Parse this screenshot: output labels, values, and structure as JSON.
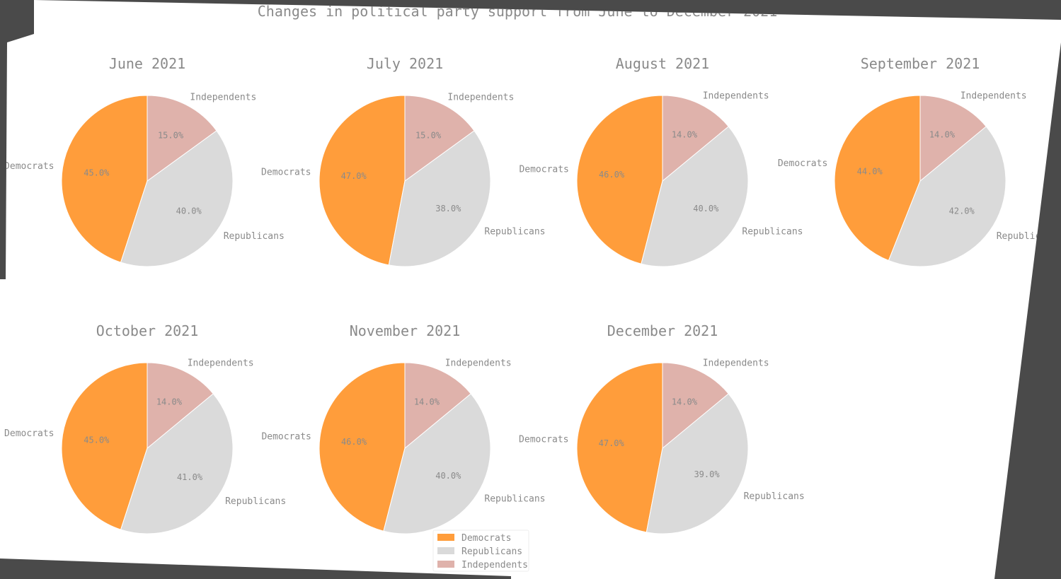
{
  "chart_data": {
    "type": "pie",
    "title": "Changes in political party support from June to December 2021",
    "legend": {
      "placement": "bottom-center",
      "entries": [
        "Democrats",
        "Republicans",
        "Independents"
      ]
    },
    "colors": {
      "Democrats": "#ff8c19",
      "Republicans": "#d3d3d3",
      "Independents": "#d9a59c"
    },
    "charts": [
      {
        "title": "June 2021",
        "categories": [
          "Democrats",
          "Republicans",
          "Independents"
        ],
        "values": [
          45.0,
          40.0,
          15.0
        ],
        "value_labels": [
          "45.0%",
          "40.0%",
          "15.0%"
        ]
      },
      {
        "title": "July 2021",
        "categories": [
          "Democrats",
          "Republicans",
          "Independents"
        ],
        "values": [
          47.0,
          38.0,
          15.0
        ],
        "value_labels": [
          "47.0%",
          "38.0%",
          "15.0%"
        ]
      },
      {
        "title": "August 2021",
        "categories": [
          "Democrats",
          "Republicans",
          "Independents"
        ],
        "values": [
          46.0,
          40.0,
          14.0
        ],
        "value_labels": [
          "46.0%",
          "40.0%",
          "14.0%"
        ]
      },
      {
        "title": "September 2021",
        "categories": [
          "Democrats",
          "Republicans",
          "Independents"
        ],
        "values": [
          44.0,
          42.0,
          14.0
        ],
        "value_labels": [
          "44.0%",
          "42.0%",
          "14.0%"
        ]
      },
      {
        "title": "October 2021",
        "categories": [
          "Democrats",
          "Republicans",
          "Independents"
        ],
        "values": [
          45.0,
          41.0,
          14.0
        ],
        "value_labels": [
          "45.0%",
          "41.0%",
          "14.0%"
        ]
      },
      {
        "title": "November 2021",
        "categories": [
          "Democrats",
          "Republicans",
          "Independents"
        ],
        "values": [
          46.0,
          40.0,
          14.0
        ],
        "value_labels": [
          "46.0%",
          "40.0%",
          "14.0%"
        ]
      },
      {
        "title": "December 2021",
        "categories": [
          "Democrats",
          "Republicans",
          "Independents"
        ],
        "values": [
          47.0,
          39.0,
          14.0
        ],
        "value_labels": [
          "47.0%",
          "39.0%",
          "14.0%"
        ]
      }
    ]
  }
}
